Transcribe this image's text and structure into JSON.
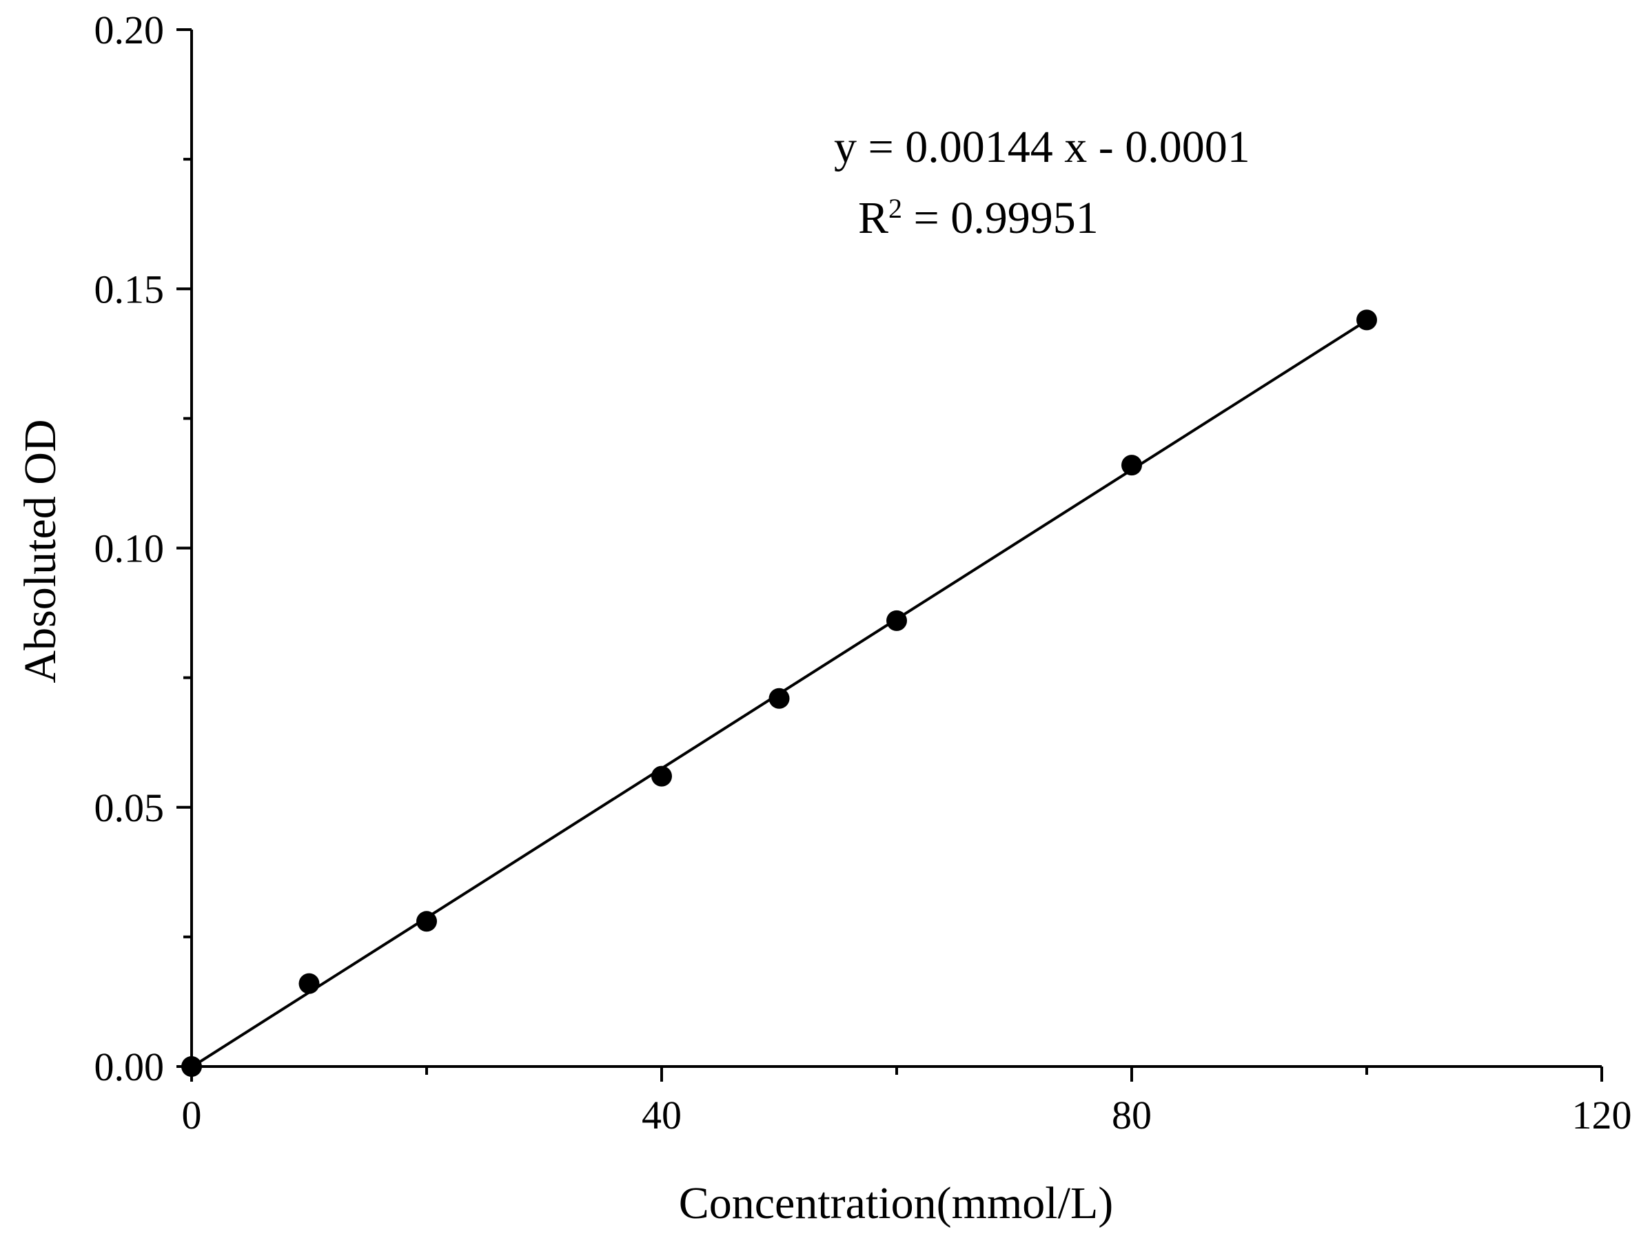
{
  "chart_data": {
    "type": "scatter",
    "title": "",
    "xlabel": "Concentration(mmol/L)",
    "ylabel": "Absoluted OD",
    "xlim": [
      0,
      120
    ],
    "ylim": [
      0,
      0.2
    ],
    "x_ticks": [
      "0",
      "40",
      "80",
      "120"
    ],
    "y_ticks": [
      "0.00",
      "0.05",
      "0.10",
      "0.15",
      "0.20"
    ],
    "grid": false,
    "series": [
      {
        "x": [
          0,
          10,
          20,
          40,
          50,
          60,
          80,
          100
        ],
        "y": [
          0.0,
          0.016,
          0.028,
          0.056,
          0.071,
          0.086,
          0.116,
          0.144
        ]
      }
    ],
    "fit_line": {
      "slope": 0.00144,
      "intercept": -0.0001,
      "x_range": [
        0,
        100
      ]
    },
    "annotations": {
      "equation": "y = 0.00144 x - 0.0001",
      "r2_label": "R",
      "r2_sup": "2",
      "r2_value": " = 0.99951"
    },
    "colors": {
      "axis": "#000000",
      "points": "#000000",
      "line": "#000000"
    }
  }
}
